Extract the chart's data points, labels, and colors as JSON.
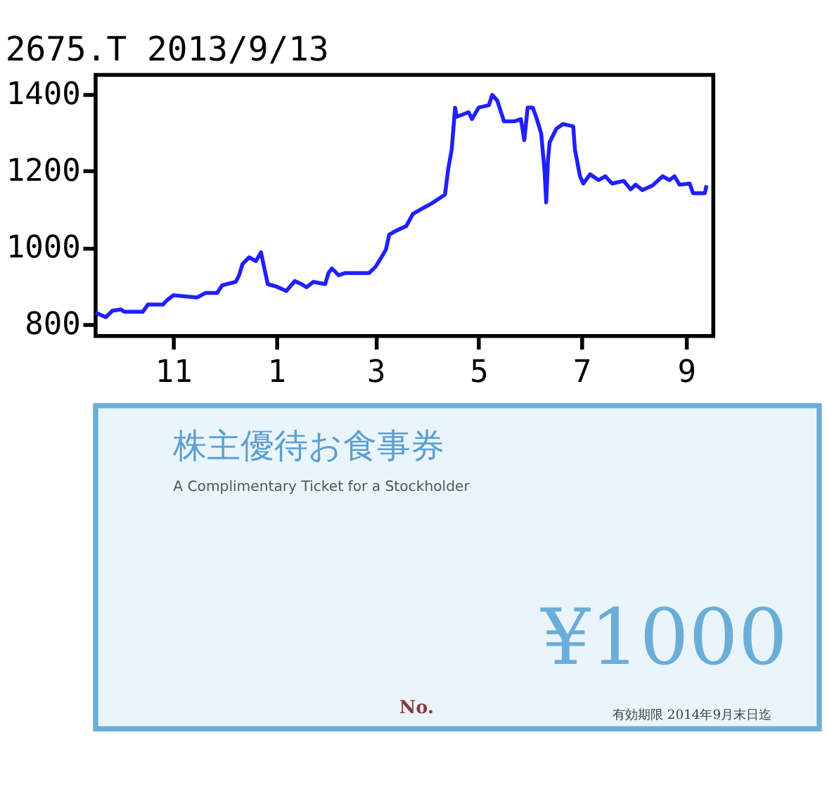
{
  "chart_data": {
    "type": "line",
    "title": "2675.T 2013/9/13",
    "x": [
      "2012-09-16",
      "2012-09-22",
      "2012-09-26",
      "2012-10-01",
      "2012-10-03",
      "2012-10-14",
      "2012-10-17",
      "2012-10-26",
      "2012-10-28",
      "2012-11-01",
      "2012-11-15",
      "2012-11-20",
      "2012-11-27",
      "2012-11-30",
      "2012-12-08",
      "2012-12-10",
      "2012-12-12",
      "2012-12-16",
      "2012-12-20",
      "2012-12-23",
      "2012-12-25",
      "2012-12-27",
      "2013-01-01",
      "2013-01-07",
      "2013-01-12",
      "2013-01-16",
      "2013-01-19",
      "2013-01-23",
      "2013-01-30",
      "2013-02-01",
      "2013-02-03",
      "2013-02-07",
      "2013-02-11",
      "2013-02-22",
      "2013-02-25",
      "2013-03-01",
      "2013-03-05",
      "2013-03-07",
      "2013-03-09",
      "2013-03-13",
      "2013-03-19",
      "2013-03-23",
      "2013-03-29",
      "2013-04-03",
      "2013-04-11",
      "2013-04-13",
      "2013-04-15",
      "2013-04-17",
      "2013-04-18",
      "2013-04-25",
      "2013-04-27",
      "2013-05-01",
      "2013-05-07",
      "2013-05-09",
      "2013-05-12",
      "2013-05-16",
      "2013-05-22",
      "2013-05-26",
      "2013-05-28",
      "2013-05-30",
      "2013-06-02",
      "2013-06-04",
      "2013-06-07",
      "2013-06-09",
      "2013-06-10",
      "2013-06-11",
      "2013-06-12",
      "2013-06-16",
      "2013-06-20",
      "2013-06-26",
      "2013-06-27",
      "2013-06-30",
      "2013-07-02",
      "2013-07-06",
      "2013-07-11",
      "2013-07-15",
      "2013-07-19",
      "2013-07-26",
      "2013-07-30",
      "2013-08-02",
      "2013-08-06",
      "2013-08-12",
      "2013-08-18",
      "2013-08-22",
      "2013-08-25",
      "2013-08-28",
      "2013-09-03",
      "2013-09-05",
      "2013-09-12",
      "2013-09-13"
    ],
    "series": [
      {
        "color": "#2020ff",
        "values": [
          831,
          819,
          836,
          839,
          833,
          833,
          852,
          852,
          862,
          876,
          870,
          882,
          882,
          902,
          911,
          928,
          957,
          975,
          965,
          988,
          946,
          905,
          899,
          887,
          913,
          905,
          897,
          911,
          905,
          934,
          946,
          928,
          934,
          934,
          934,
          951,
          980,
          995,
          1034,
          1044,
          1056,
          1088,
          1103,
          1115,
          1138,
          1207,
          1256,
          1365,
          1341,
          1353,
          1335,
          1365,
          1371,
          1398,
          1383,
          1329,
          1329,
          1335,
          1280,
          1365,
          1365,
          1341,
          1298,
          1201,
          1118,
          1226,
          1274,
          1310,
          1322,
          1316,
          1256,
          1186,
          1167,
          1191,
          1176,
          1186,
          1167,
          1174,
          1152,
          1164,
          1150,
          1162,
          1186,
          1176,
          1186,
          1164,
          1167,
          1142,
          1142,
          1162
        ]
      }
    ],
    "xlim": [
      "2012-09-16",
      "2013-09-17"
    ],
    "xticks": [
      {
        "value": "2012-11-01",
        "label": "11"
      },
      {
        "value": "2013-01-01",
        "label": "1"
      },
      {
        "value": "2013-03-01",
        "label": "3"
      },
      {
        "value": "2013-05-01",
        "label": "5"
      },
      {
        "value": "2013-07-01",
        "label": "7"
      },
      {
        "value": "2013-09-01",
        "label": "9"
      }
    ],
    "ylim": [
      770,
      1450
    ],
    "yticks": [
      800,
      1000,
      1200,
      1400
    ],
    "grid": false,
    "legend": false,
    "marker": "none",
    "line_style": "solid",
    "annotations": [
      "株主優待お食事券",
      "A Complimentary Ticket for a Stockholder",
      "¥1000",
      "No.",
      "有効期限 2014年9月末日迄"
    ]
  }
}
